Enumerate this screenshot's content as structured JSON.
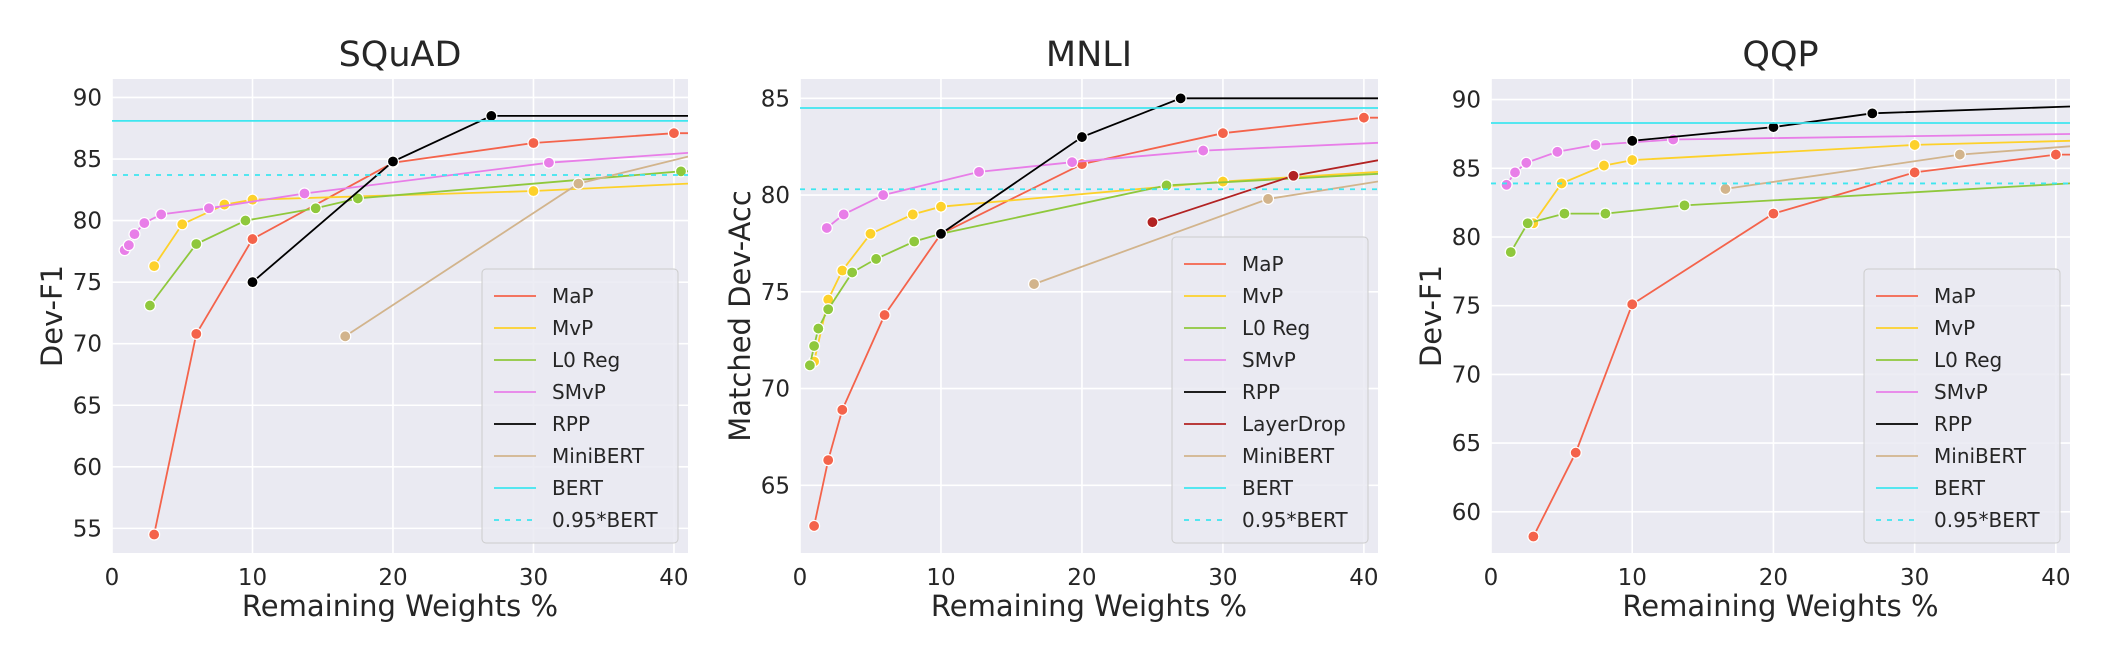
{
  "colors": {
    "background": "#eaeaf2",
    "grid": "#ffffff",
    "MaP": "#f4634b",
    "MvP": "#fdd12a",
    "L0 Reg": "#8fc83c",
    "SMvP": "#e87ee8",
    "RPP": "#000000",
    "LayerDrop": "#b22222",
    "MiniBERT": "#d2b48c",
    "BERT": "#3ee6f0",
    "0.95*BERT": "#3ee6f0"
  },
  "chart_data": [
    {
      "type": "line",
      "title": "SQuAD",
      "xlabel": "Remaining Weights %",
      "ylabel": "Dev-F1",
      "xlim": [
        0,
        41
      ],
      "ylim": [
        53,
        91.5
      ],
      "xticks": [
        0,
        10,
        20,
        30,
        40
      ],
      "yticks": [
        55,
        60,
        65,
        70,
        75,
        80,
        85,
        90
      ],
      "grid": true,
      "legend_position": "lower-right",
      "series": [
        {
          "name": "MaP",
          "x": [
            3,
            6,
            10,
            20,
            30,
            40,
            41
          ],
          "y": [
            54.5,
            70.8,
            78.5,
            84.7,
            86.3,
            87.1,
            87.1
          ],
          "marker_count": 6
        },
        {
          "name": "MvP",
          "x": [
            3,
            5,
            8,
            10,
            30,
            41
          ],
          "y": [
            76.3,
            79.7,
            81.3,
            81.7,
            82.4,
            83.0
          ],
          "marker_count": 5
        },
        {
          "name": "L0 Reg",
          "x": [
            2.7,
            6,
            9.5,
            14.5,
            17.5,
            40.5,
            41
          ],
          "y": [
            73.1,
            78.1,
            80.0,
            81.0,
            81.8,
            84.0,
            84.0
          ],
          "marker_count": 6
        },
        {
          "name": "SMvP",
          "x": [
            0.9,
            1.2,
            1.6,
            2.3,
            3.5,
            6.9,
            13.7,
            31.1,
            41
          ],
          "y": [
            77.6,
            78.0,
            78.9,
            79.8,
            80.5,
            81.0,
            82.2,
            84.7,
            85.5
          ],
          "marker_count": 8
        },
        {
          "name": "RPP",
          "x": [
            10,
            20,
            27,
            41
          ],
          "y": [
            75.0,
            84.8,
            88.5,
            88.5
          ],
          "marker_count": 3
        },
        {
          "name": "MiniBERT",
          "x": [
            16.6,
            33.2,
            41
          ],
          "y": [
            70.6,
            83.0,
            85.2
          ],
          "marker_count": 2
        },
        {
          "name": "BERT",
          "hline": 88.1
        },
        {
          "name": "0.95*BERT",
          "hline": 83.7
        }
      ]
    },
    {
      "type": "line",
      "title": "MNLI",
      "xlabel": "Remaining Weights %",
      "ylabel": "Matched Dev-Acc",
      "xlim": [
        0,
        41
      ],
      "ylim": [
        61.5,
        86
      ],
      "xticks": [
        0,
        10,
        20,
        30,
        40
      ],
      "yticks": [
        65,
        70,
        75,
        80,
        85
      ],
      "grid": true,
      "legend_position": "lower-right",
      "series": [
        {
          "name": "MaP",
          "x": [
            1,
            2,
            3,
            6,
            10,
            20,
            30,
            40,
            41
          ],
          "y": [
            62.9,
            66.3,
            68.9,
            73.8,
            78.0,
            81.6,
            83.2,
            84.0,
            84.0
          ],
          "marker_count": 8
        },
        {
          "name": "MvP",
          "x": [
            1,
            2,
            3,
            5,
            8,
            10,
            30,
            41
          ],
          "y": [
            71.4,
            74.6,
            76.1,
            78.0,
            79.0,
            79.4,
            80.7,
            81.2
          ],
          "marker_count": 7
        },
        {
          "name": "L0 Reg",
          "x": [
            0.7,
            1,
            1.3,
            2,
            3.7,
            5.4,
            8.1,
            10,
            26,
            41
          ],
          "y": [
            71.2,
            72.2,
            73.1,
            74.1,
            76.0,
            76.7,
            77.6,
            78.0,
            80.5,
            81.1
          ],
          "marker_count": 9
        },
        {
          "name": "SMvP",
          "x": [
            1.9,
            3.1,
            5.9,
            12.7,
            19.3,
            28.6,
            41
          ],
          "y": [
            78.3,
            79.0,
            80.0,
            81.2,
            81.7,
            82.3,
            82.7
          ],
          "marker_count": 6
        },
        {
          "name": "RPP",
          "x": [
            10,
            20,
            27,
            41
          ],
          "y": [
            78.0,
            83.0,
            85.0,
            85.0
          ],
          "marker_count": 3
        },
        {
          "name": "LayerDrop",
          "x": [
            25,
            35,
            41
          ],
          "y": [
            78.6,
            81.0,
            81.8
          ],
          "marker_count": 2
        },
        {
          "name": "MiniBERT",
          "x": [
            16.6,
            33.2,
            41
          ],
          "y": [
            75.4,
            79.8,
            80.7
          ],
          "marker_count": 2
        },
        {
          "name": "BERT",
          "hline": 84.5
        },
        {
          "name": "0.95*BERT",
          "hline": 80.3
        }
      ]
    },
    {
      "type": "line",
      "title": "QQP",
      "xlabel": "Remaining Weights %",
      "ylabel": "Dev-F1",
      "xlim": [
        0,
        41
      ],
      "ylim": [
        57,
        91.5
      ],
      "xticks": [
        0,
        10,
        20,
        30,
        40
      ],
      "yticks": [
        60,
        65,
        70,
        75,
        80,
        85,
        90
      ],
      "grid": true,
      "legend_position": "lower-right",
      "series": [
        {
          "name": "MaP",
          "x": [
            3,
            6,
            10,
            20,
            30,
            40,
            41
          ],
          "y": [
            58.2,
            64.3,
            75.1,
            81.7,
            84.7,
            86.0,
            86.0
          ],
          "marker_count": 6
        },
        {
          "name": "MvP",
          "x": [
            3,
            5,
            8,
            10,
            30,
            41
          ],
          "y": [
            81.0,
            83.9,
            85.2,
            85.6,
            86.7,
            87.0
          ],
          "marker_count": 5
        },
        {
          "name": "L0 Reg",
          "x": [
            1.4,
            2.6,
            5.2,
            8.1,
            13.7,
            41
          ],
          "y": [
            78.9,
            81.0,
            81.7,
            81.7,
            82.3,
            83.9
          ],
          "marker_count": 5
        },
        {
          "name": "SMvP",
          "x": [
            1.1,
            1.7,
            2.5,
            4.7,
            7.4,
            12.9,
            41
          ],
          "y": [
            83.8,
            84.7,
            85.4,
            86.2,
            86.7,
            87.1,
            87.5
          ],
          "marker_count": 6
        },
        {
          "name": "RPP",
          "x": [
            10,
            20,
            27,
            41
          ],
          "y": [
            87.0,
            88.0,
            89.0,
            89.5
          ],
          "marker_count": 3
        },
        {
          "name": "MiniBERT",
          "x": [
            16.6,
            33.2,
            41
          ],
          "y": [
            83.5,
            86.0,
            86.6
          ],
          "marker_count": 2
        },
        {
          "name": "BERT",
          "hline": 88.3
        },
        {
          "name": "0.95*BERT",
          "hline": 83.9
        }
      ]
    }
  ]
}
